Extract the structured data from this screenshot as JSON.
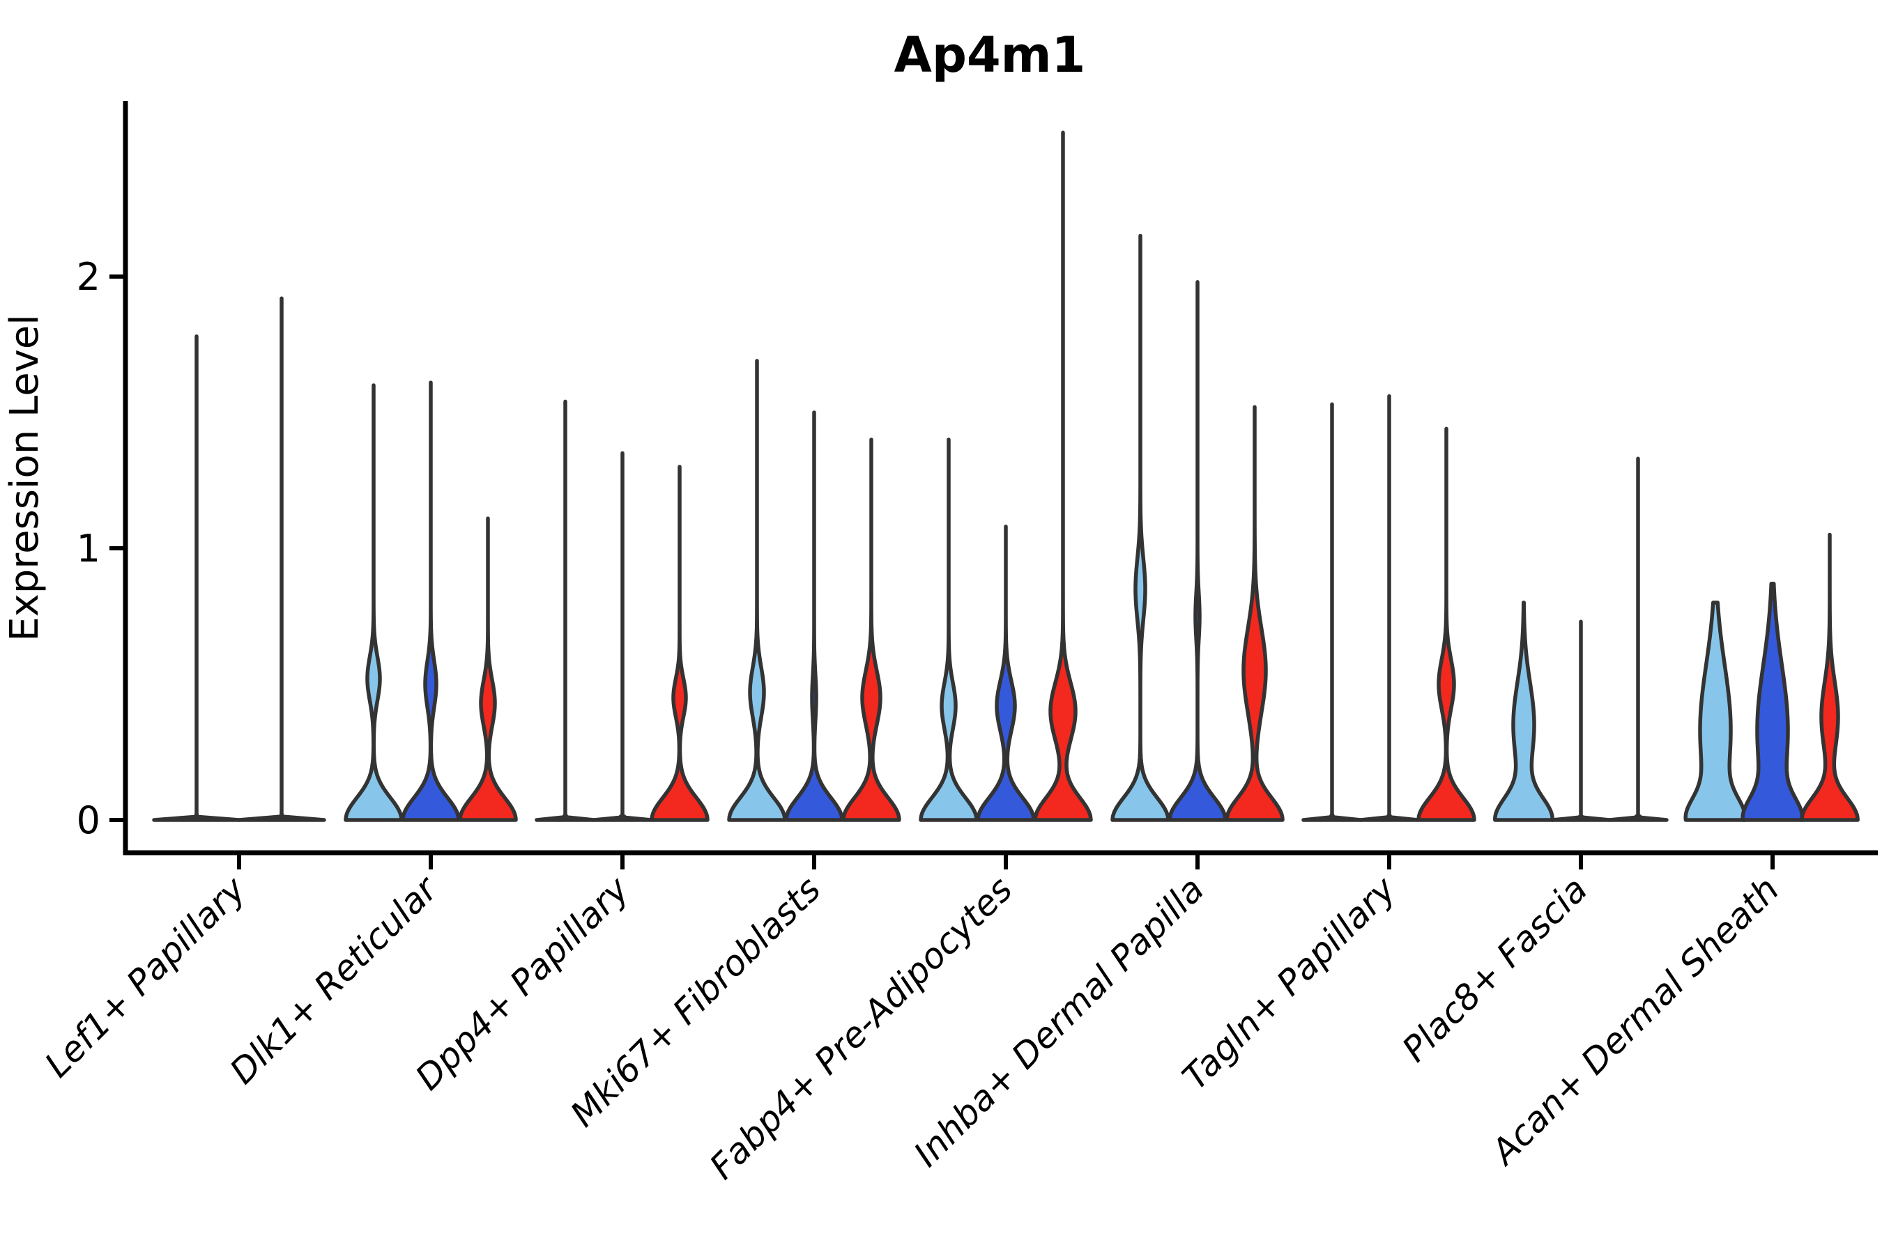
{
  "chart_data": {
    "type": "violin",
    "title": "Ap4m1",
    "ylabel": "Expression Level",
    "xlabel": "",
    "yticks": [
      0,
      1,
      2
    ],
    "ylim": [
      -0.12,
      2.65
    ],
    "grid": false,
    "legend": "none",
    "series_colors": {
      "lightblue": "#87C6EA",
      "blue": "#3459DB",
      "red": "#F3281E"
    },
    "outline_color": "#333333",
    "categories": [
      "Lef1+ Papillary",
      "Dlk1+ Reticular",
      "Dpp4+ Papillary",
      "Mki67+ Fibroblasts",
      "Fabp4+ Pre-Adipocytes",
      "Inhba+ Dermal Papilla",
      "Tagln+ Papillary",
      "Plac8+ Fascia",
      "Acan+ Dermal Sheath"
    ],
    "groups": [
      {
        "category": "Lef1+ Papillary",
        "violins": [
          {
            "color": "lightblue",
            "max": 1.78,
            "flat": true
          },
          {
            "color": "blue",
            "max": 1.92,
            "flat": true
          }
        ]
      },
      {
        "category": "Dlk1+ Reticular",
        "violins": [
          {
            "color": "lightblue",
            "max": 1.6,
            "bulge": {
              "mu": 0.52,
              "sigma": 0.115,
              "amp": 9
            }
          },
          {
            "color": "blue",
            "max": 1.61,
            "bulge": {
              "mu": 0.5,
              "sigma": 0.12,
              "amp": 8
            }
          },
          {
            "color": "red",
            "max": 1.11,
            "bulge": {
              "mu": 0.43,
              "sigma": 0.12,
              "amp": 10
            }
          }
        ]
      },
      {
        "category": "Dpp4+ Papillary",
        "violins": [
          {
            "color": "lightblue",
            "max": 1.54,
            "flat": true
          },
          {
            "color": "blue",
            "max": 1.35,
            "flat": true
          },
          {
            "color": "red",
            "max": 1.3,
            "bulge": {
              "mu": 0.45,
              "sigma": 0.1,
              "amp": 9
            }
          }
        ]
      },
      {
        "category": "Mki67+ Fibroblasts",
        "violins": [
          {
            "color": "lightblue",
            "max": 1.69,
            "bulge": {
              "mu": 0.47,
              "sigma": 0.13,
              "amp": 10
            }
          },
          {
            "color": "blue",
            "max": 1.5,
            "bulge": {
              "mu": 0.45,
              "sigma": 0.12,
              "amp": 3
            }
          },
          {
            "color": "red",
            "max": 1.4,
            "bulge": {
              "mu": 0.45,
              "sigma": 0.14,
              "amp": 13
            }
          }
        ]
      },
      {
        "category": "Fabp4+ Pre-Adipocytes",
        "violins": [
          {
            "color": "lightblue",
            "max": 1.4,
            "bulge": {
              "mu": 0.42,
              "sigma": 0.12,
              "amp": 10
            }
          },
          {
            "color": "blue",
            "max": 1.08,
            "bulge": {
              "mu": 0.42,
              "sigma": 0.13,
              "amp": 13
            }
          },
          {
            "color": "red",
            "max": 2.53,
            "bulge": {
              "mu": 0.4,
              "sigma": 0.15,
              "amp": 18
            }
          }
        ]
      },
      {
        "category": "Inhba+ Dermal Papilla",
        "violins": [
          {
            "color": "lightblue",
            "max": 2.15,
            "bulge": {
              "mu": 0.85,
              "sigma": 0.16,
              "amp": 7
            }
          },
          {
            "color": "blue",
            "max": 1.98,
            "bulge": {
              "mu": 0.75,
              "sigma": 0.12,
              "amp": 3
            }
          },
          {
            "color": "red",
            "max": 1.52,
            "bulge": {
              "mu": 0.55,
              "sigma": 0.22,
              "amp": 16
            }
          }
        ]
      },
      {
        "category": "Tagln+ Papillary",
        "violins": [
          {
            "color": "lightblue",
            "max": 1.53,
            "flat": true
          },
          {
            "color": "blue",
            "max": 1.56,
            "flat": true
          },
          {
            "color": "red",
            "max": 1.44,
            "bulge": {
              "mu": 0.5,
              "sigma": 0.13,
              "amp": 11
            }
          }
        ]
      },
      {
        "category": "Plac8+ Fascia",
        "violins": [
          {
            "color": "lightblue",
            "max": 0.8,
            "bulge": {
              "mu": 0.35,
              "sigma": 0.22,
              "amp": 15
            }
          },
          {
            "color": "blue",
            "max": 0.73,
            "flat": true
          },
          {
            "color": "red",
            "max": 1.33,
            "flat": true
          }
        ]
      },
      {
        "category": "Acan+ Dermal Sheath",
        "violins": [
          {
            "color": "lightblue",
            "max": 0.8,
            "bulge": {
              "mu": 0.33,
              "sigma": 0.34,
              "amp": 22
            },
            "base": {
              "sigma": 0.11,
              "amp": 34
            }
          },
          {
            "color": "blue",
            "max": 0.87,
            "bulge": {
              "mu": 0.33,
              "sigma": 0.34,
              "amp": 22
            },
            "base": {
              "sigma": 0.11,
              "amp": 34
            }
          },
          {
            "color": "red",
            "max": 1.05,
            "bulge": {
              "mu": 0.38,
              "sigma": 0.18,
              "amp": 12
            }
          }
        ]
      }
    ]
  }
}
